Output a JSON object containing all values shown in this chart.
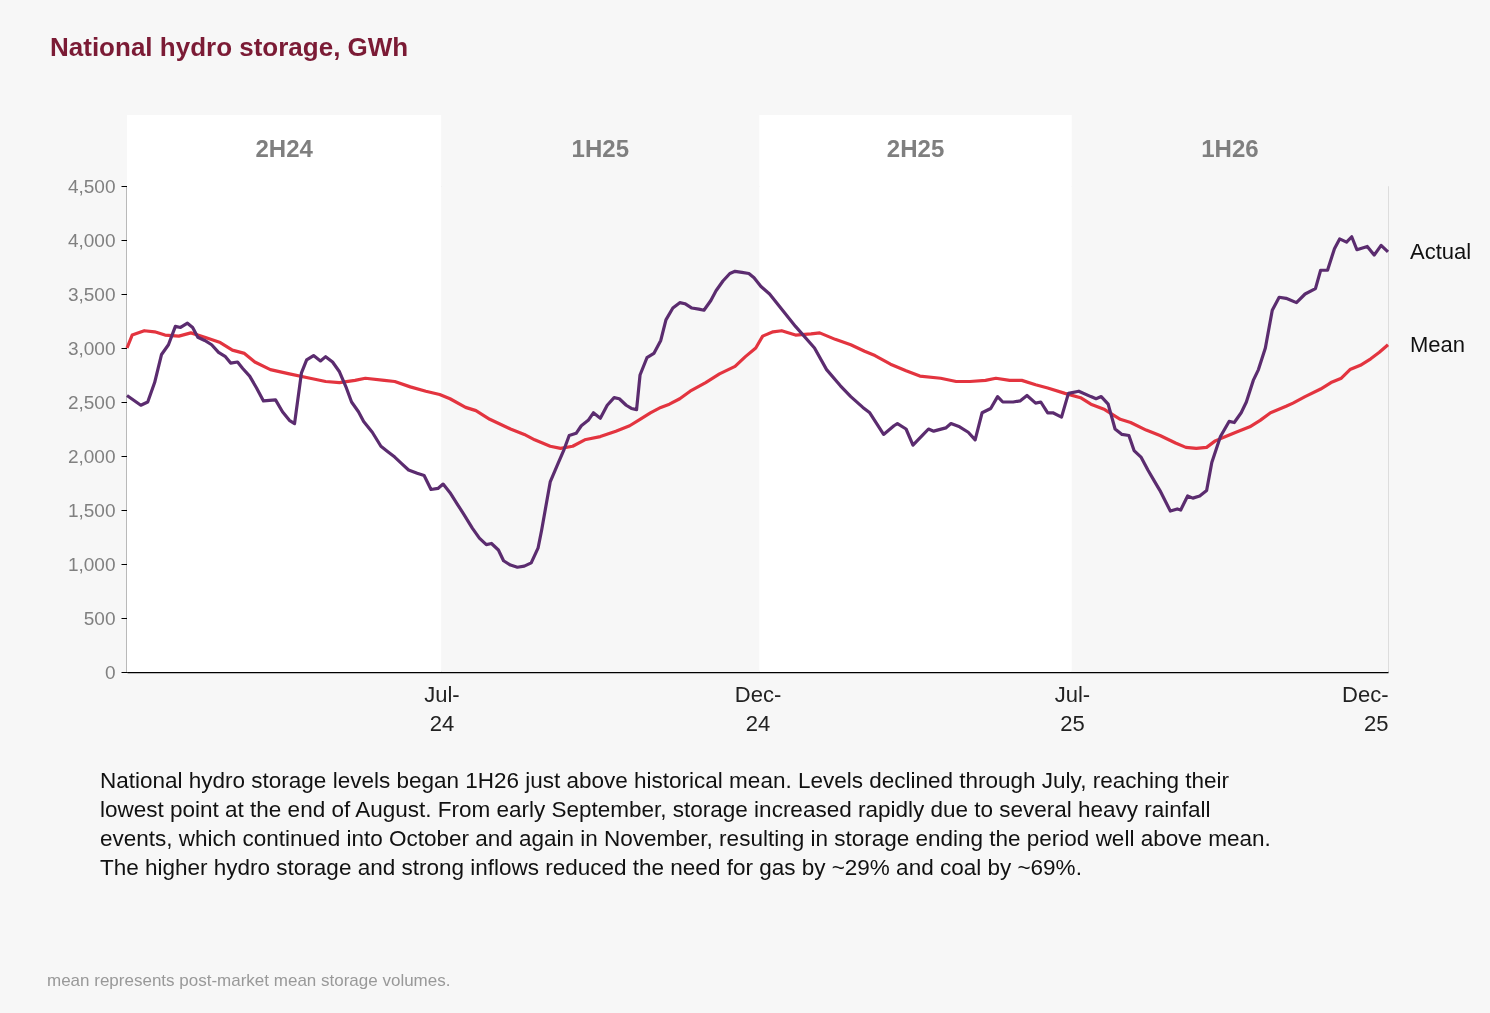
{
  "chart_data": {
    "type": "line",
    "title": "National hydro storage, GWh",
    "x": [
      "2024-01-01",
      "2024-01-09",
      "2024-01-13",
      "2024-01-17",
      "2024-01-21",
      "2024-01-25",
      "2024-01-29",
      "2024-02-01",
      "2024-02-05",
      "2024-02-08",
      "2024-02-11",
      "2024-02-15",
      "2024-02-19",
      "2024-02-23",
      "2024-02-27",
      "2024-03-01",
      "2024-03-05",
      "2024-03-08",
      "2024-03-12",
      "2024-03-16",
      "2024-03-20",
      "2024-03-27",
      "2024-03-31",
      "2024-04-04",
      "2024-04-07",
      "2024-04-11",
      "2024-04-14",
      "2024-04-18",
      "2024-04-22",
      "2024-04-25",
      "2024-04-29",
      "2024-05-03",
      "2024-05-07",
      "2024-05-10",
      "2024-05-14",
      "2024-05-17",
      "2024-05-22",
      "2024-05-27",
      "2024-05-31",
      "2024-06-04",
      "2024-06-08",
      "2024-06-12",
      "2024-06-17",
      "2024-06-21",
      "2024-06-25",
      "2024-06-29",
      "2024-07-02",
      "2024-07-06",
      "2024-07-10",
      "2024-07-14",
      "2024-07-19",
      "2024-07-23",
      "2024-07-27",
      "2024-07-30",
      "2024-08-03",
      "2024-08-06",
      "2024-08-10",
      "2024-08-14",
      "2024-08-18",
      "2024-08-22",
      "2024-08-26",
      "2024-08-28",
      "2024-09-02",
      "2024-09-06",
      "2024-09-10",
      "2024-09-13",
      "2024-09-17",
      "2024-09-20",
      "2024-09-24",
      "2024-09-27",
      "2024-10-01",
      "2024-10-05",
      "2024-10-09",
      "2024-10-12",
      "2024-10-16",
      "2024-10-19",
      "2024-10-22",
      "2024-10-24",
      "2024-10-28",
      "2024-11-01",
      "2024-11-05",
      "2024-11-08",
      "2024-11-12",
      "2024-11-16",
      "2024-11-19",
      "2024-11-23",
      "2024-11-27",
      "2024-11-30",
      "2024-12-04",
      "2024-12-07",
      "2024-12-11",
      "2024-12-15",
      "2024-12-18",
      "2024-12-22",
      "2024-12-26",
      "2024-12-29",
      "2025-01-02",
      "2025-01-07",
      "2025-01-22",
      "2025-02-02",
      "2025-02-09",
      "2025-02-17",
      "2025-02-23",
      "2025-03-02",
      "2025-03-06",
      "2025-03-10",
      "2025-03-14",
      "2025-03-20",
      "2025-03-22",
      "2025-03-27",
      "2025-03-31",
      "2025-04-06",
      "2025-04-09",
      "2025-04-12",
      "2025-04-19",
      "2025-04-22",
      "2025-04-27",
      "2025-05-02",
      "2025-05-06",
      "2025-05-10",
      "2025-05-15",
      "2025-05-19",
      "2025-05-22",
      "2025-05-28",
      "2025-06-01",
      "2025-06-05",
      "2025-06-10",
      "2025-06-13",
      "2025-06-17",
      "2025-06-20",
      "2025-06-25",
      "2025-06-29",
      "2025-07-05",
      "2025-07-12",
      "2025-07-15",
      "2025-07-18",
      "2025-07-22",
      "2025-07-26",
      "2025-07-30",
      "2025-08-03",
      "2025-08-06",
      "2025-08-10",
      "2025-08-14",
      "2025-08-18",
      "2025-08-21",
      "2025-08-27",
      "2025-08-31",
      "2025-09-02",
      "2025-09-06",
      "2025-09-09",
      "2025-09-13",
      "2025-09-17",
      "2025-09-20",
      "2025-09-25",
      "2025-09-30",
      "2025-10-03",
      "2025-10-07",
      "2025-10-10",
      "2025-10-14",
      "2025-10-17",
      "2025-10-21",
      "2025-10-25",
      "2025-10-29",
      "2025-11-02",
      "2025-11-08",
      "2025-11-13",
      "2025-11-19",
      "2025-11-22",
      "2025-11-26",
      "2025-11-30",
      "2025-12-03",
      "2025-12-07",
      "2025-12-10",
      "2025-12-13",
      "2025-12-19",
      "2025-12-23",
      "2025-12-27",
      "2025-12-31"
    ],
    "series": [
      {
        "name": "Actual",
        "color": "#5b2c6f",
        "values": [
          2560,
          2470,
          2500,
          2680,
          2940,
          3030,
          3200,
          3190,
          3230,
          3190,
          3100,
          3070,
          3030,
          2960,
          2920,
          2860,
          2870,
          2810,
          2740,
          2630,
          2510,
          2520,
          2410,
          2330,
          2300,
          2770,
          2890,
          2930,
          2880,
          2920,
          2870,
          2780,
          2630,
          2500,
          2410,
          2320,
          2220,
          2090,
          2040,
          1990,
          1930,
          1870,
          1840,
          1820,
          1690,
          1700,
          1740,
          1660,
          1560,
          1460,
          1330,
          1240,
          1180,
          1190,
          1130,
          1030,
          990,
          970,
          980,
          1010,
          1150,
          1310,
          1760,
          1910,
          2060,
          2190,
          2210,
          2280,
          2330,
          2400,
          2350,
          2470,
          2540,
          2530,
          2470,
          2440,
          2430,
          2750,
          2910,
          2950,
          3070,
          3260,
          3370,
          3420,
          3410,
          3370,
          3360,
          3350,
          3440,
          3530,
          3620,
          3690,
          3710,
          3700,
          3690,
          3650,
          3570,
          3500,
          3200,
          3000,
          2800,
          2650,
          2550,
          2450,
          2400,
          2300,
          2200,
          2280,
          2300,
          2250,
          2100,
          2200,
          2250,
          2230,
          2260,
          2300,
          2270,
          2220,
          2150,
          2400,
          2440,
          2550,
          2500,
          2500,
          2510,
          2560,
          2490,
          2500,
          2400,
          2400,
          2360,
          2580,
          2600,
          2550,
          2530,
          2550,
          2480,
          2250,
          2200,
          2190,
          2050,
          1990,
          1870,
          1760,
          1680,
          1490,
          1510,
          1500,
          1630,
          1610,
          1630,
          1680,
          1940,
          2180,
          2320,
          2310,
          2400,
          2500,
          2700,
          2800,
          3000,
          3350,
          3470,
          3460,
          3420,
          3500,
          3550,
          3720,
          3720,
          3920,
          4010,
          3980,
          4030,
          3910,
          3940,
          3860,
          3950,
          3890
        ]
      },
      {
        "name": "Mean",
        "color": "#e3343f",
        "x": [
          "2024-01-01",
          "2024-01-04",
          "2024-01-11",
          "2024-01-17",
          "2024-01-23",
          "2024-01-31",
          "2024-02-07",
          "2024-02-15",
          "2024-02-24",
          "2024-03-02",
          "2024-03-09",
          "2024-03-15",
          "2024-03-24",
          "2024-04-04",
          "2024-04-16",
          "2024-04-25",
          "2024-05-03",
          "2024-05-12",
          "2024-05-18",
          "2024-05-29",
          "2024-06-04",
          "2024-06-13",
          "2024-06-22",
          "2024-06-30",
          "2024-07-06",
          "2024-07-15",
          "2024-07-21",
          "2024-07-29",
          "2024-08-02",
          "2024-08-10",
          "2024-08-18",
          "2024-08-24",
          "2024-09-02",
          "2024-09-08",
          "2024-09-15",
          "2024-09-22",
          "2024-10-01",
          "2024-10-10",
          "2024-10-18",
          "2024-10-24",
          "2024-10-30",
          "2024-11-05",
          "2024-11-10",
          "2024-11-16",
          "2024-11-22",
          "2024-12-01",
          "2024-12-09",
          "2024-12-18",
          "2024-12-24",
          "2024-12-30",
          "2025-01-03",
          "2025-01-09",
          "2025-01-14",
          "2025-01-22",
          "2025-01-31",
          "2025-02-05",
          "2025-02-14",
          "2025-02-23",
          "2025-03-03",
          "2025-03-09",
          "2025-03-18",
          "2025-03-27",
          "2025-04-04",
          "2025-04-16",
          "2025-04-25",
          "2025-05-03",
          "2025-05-12",
          "2025-05-18",
          "2025-05-26",
          "2025-06-02",
          "2025-06-10",
          "2025-06-17",
          "2025-06-27",
          "2025-07-06",
          "2025-07-12",
          "2025-07-20",
          "2025-07-29",
          "2025-08-04",
          "2025-08-13",
          "2025-08-21",
          "2025-08-30",
          "2025-09-05",
          "2025-09-11",
          "2025-09-17",
          "2025-09-22",
          "2025-09-28",
          "2025-10-04",
          "2025-10-12",
          "2025-10-18",
          "2025-10-24",
          "2025-11-02",
          "2025-11-06",
          "2025-11-13",
          "2025-11-22",
          "2025-11-28",
          "2025-12-04",
          "2025-12-09",
          "2025-12-15",
          "2025-12-21",
          "2025-12-26",
          "2025-12-31"
        ],
        "values": [
          3000,
          3120,
          3160,
          3150,
          3120,
          3110,
          3140,
          3100,
          3050,
          2980,
          2950,
          2870,
          2800,
          2760,
          2720,
          2690,
          2680,
          2700,
          2720,
          2700,
          2690,
          2640,
          2600,
          2570,
          2530,
          2450,
          2420,
          2340,
          2310,
          2250,
          2200,
          2150,
          2090,
          2070,
          2090,
          2150,
          2180,
          2230,
          2280,
          2340,
          2400,
          2450,
          2480,
          2530,
          2600,
          2680,
          2760,
          2830,
          2920,
          3000,
          3110,
          3150,
          3160,
          3120,
          3130,
          3140,
          3080,
          3030,
          2970,
          2930,
          2850,
          2790,
          2740,
          2720,
          2690,
          2690,
          2700,
          2720,
          2700,
          2700,
          2660,
          2630,
          2580,
          2540,
          2480,
          2430,
          2340,
          2310,
          2240,
          2190,
          2120,
          2080,
          2070,
          2080,
          2140,
          2180,
          2220,
          2270,
          2330,
          2400,
          2460,
          2490,
          2550,
          2620,
          2680,
          2720,
          2800,
          2840,
          2900,
          2960,
          3030
        ]
      }
    ],
    "xlim": [
      "2024-01-01",
      "2025-12-31"
    ],
    "xticks": [
      {
        "value": "2024-07-01",
        "label": "Jul-24"
      },
      {
        "value": "2024-12-31",
        "label": "Dec-24"
      },
      {
        "value": "2025-07-01",
        "label": "Jul-25"
      },
      {
        "value": "2025-12-31",
        "label": "Dec-25"
      }
    ],
    "ylim": [
      0,
      4500
    ],
    "yticks": [
      0,
      500,
      {
        "value": 1000,
        "label": "1,000"
      },
      {
        "value": 1500,
        "label": "1,500"
      },
      {
        "value": 2000,
        "label": "2,000"
      },
      {
        "value": 2500,
        "label": "2,500"
      },
      {
        "value": 3000,
        "label": "3,000"
      },
      {
        "value": 3500,
        "label": "3,500"
      },
      {
        "value": 4000,
        "label": "4,000"
      },
      {
        "value": 4500,
        "label": "4,500"
      }
    ],
    "bands": [
      {
        "axis": "x",
        "from": "2024-01-01",
        "to": "2024-07-01",
        "label": "2H24",
        "color": "#ffffff"
      },
      {
        "axis": "x",
        "from": "2024-07-01",
        "to": "2025-01-01",
        "label": "1H25",
        "color": "#f7f7f7"
      },
      {
        "axis": "x",
        "from": "2025-01-01",
        "to": "2025-07-01",
        "label": "2H25",
        "color": "#ffffff"
      },
      {
        "axis": "x",
        "from": "2025-07-01",
        "to": "2025-12-31",
        "label": "1H26",
        "color": "#f7f7f7"
      }
    ],
    "annotations": [
      "National hydro storage levels began 1H26 just above historical mean. Levels declined through July, reaching their lowest point at the end of August. From early September, storage increased rapidly due to several heavy rainfall events, which continued into October and again in November, resulting in storage ending the period well above mean. The higher hydro storage and strong inflows reduced the need for gas by ~29% and coal by ~69%.",
      "mean represents post-market mean storage volumes."
    ],
    "legend": false,
    "grid": false,
    "marker": "none",
    "line_style": "solid"
  }
}
